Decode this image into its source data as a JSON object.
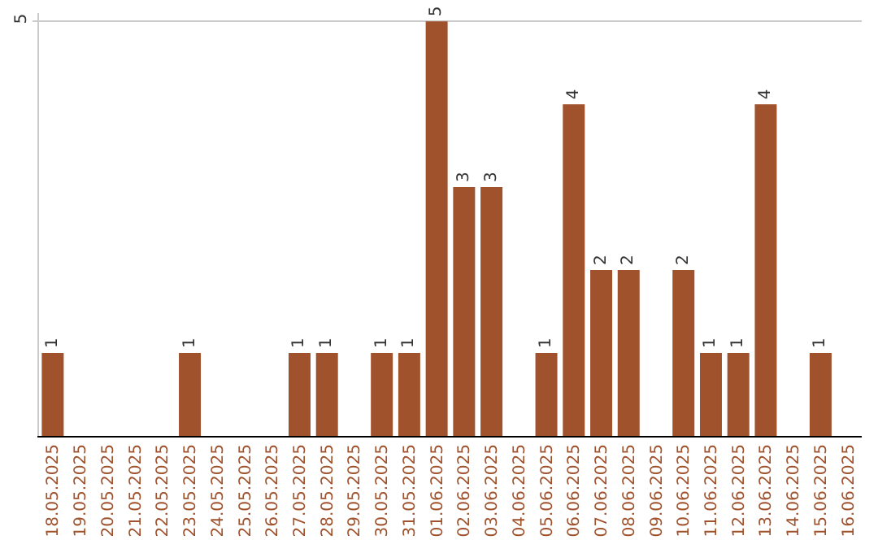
{
  "chart_data": {
    "type": "bar",
    "categories": [
      "18.05.2025",
      "19.05.2025",
      "20.05.2025",
      "21.05.2025",
      "22.05.2025",
      "23.05.2025",
      "24.05.2025",
      "25.05.2025",
      "26.05.2025",
      "27.05.2025",
      "28.05.2025",
      "29.05.2025",
      "30.05.2025",
      "31.05.2025",
      "01.06.2025",
      "02.06.2025",
      "03.06.2025",
      "04.06.2025",
      "05.06.2025",
      "06.06.2025",
      "07.06.2025",
      "08.06.2025",
      "09.06.2025",
      "10.06.2025",
      "11.06.2025",
      "12.06.2025",
      "13.06.2025",
      "14.06.2025",
      "15.06.2025",
      "16.06.2025"
    ],
    "values": [
      1,
      0,
      0,
      0,
      0,
      1,
      0,
      0,
      0,
      1,
      1,
      0,
      1,
      1,
      5,
      3,
      3,
      0,
      1,
      4,
      2,
      2,
      0,
      2,
      1,
      1,
      4,
      0,
      1,
      0
    ],
    "value_labels": [
      "1",
      null,
      null,
      null,
      null,
      "1",
      null,
      null,
      null,
      "1",
      "1",
      null,
      "1",
      "1",
      "5",
      "3",
      "3",
      null,
      "1",
      "4",
      "2",
      "2",
      null,
      "2",
      "1",
      "1",
      "4",
      null,
      "1",
      null
    ],
    "color": "#a0522d",
    "ylim": [
      0,
      5.1
    ],
    "yticks": [
      5
    ],
    "grid": "y"
  }
}
